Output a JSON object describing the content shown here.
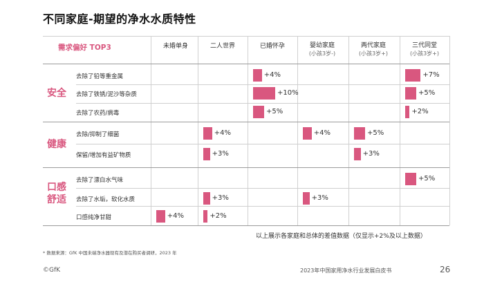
{
  "title": "不同家庭-期望的净水水质特性",
  "table": {
    "corner_label": "需求偏好 TOP3",
    "columns": [
      {
        "label": "未婚单身",
        "sub": ""
      },
      {
        "label": "二人世界",
        "sub": ""
      },
      {
        "label": "已婚怀孕",
        "sub": ""
      },
      {
        "label": "婴幼家庭",
        "sub": "(小孩3岁-)"
      },
      {
        "label": "两代家庭",
        "sub": "(小孩3岁+)"
      },
      {
        "label": "三代同堂",
        "sub": "(小孩3岁+)"
      }
    ],
    "categories": [
      {
        "label": "安全",
        "rows": [
          {
            "label": "去除了铅等重金属",
            "cells": [
              null,
              null,
              {
                "value": 4,
                "text": "+4%"
              },
              null,
              null,
              {
                "value": 7,
                "text": "+7%"
              }
            ]
          },
          {
            "label": "去除了铁锈/泥沙等杂质",
            "cells": [
              null,
              null,
              {
                "value": 10,
                "text": "+10%"
              },
              null,
              null,
              {
                "value": 5,
                "text": "+5%"
              }
            ]
          },
          {
            "label": "去除了农药/病毒",
            "cells": [
              null,
              null,
              {
                "value": 5,
                "text": "+5%"
              },
              null,
              null,
              {
                "value": 2,
                "text": "+2%"
              }
            ]
          }
        ]
      },
      {
        "label": "健康",
        "rows": [
          {
            "label": "去除/抑制了细菌",
            "cells": [
              null,
              {
                "value": 4,
                "text": "+4%"
              },
              null,
              {
                "value": 4,
                "text": "+4%"
              },
              {
                "value": 5,
                "text": "+5%"
              },
              null
            ]
          },
          {
            "label": "保留/增加有益矿物质",
            "cells": [
              null,
              {
                "value": 3,
                "text": "+3%"
              },
              null,
              null,
              {
                "value": 3,
                "text": "+3%"
              },
              null
            ]
          }
        ]
      },
      {
        "label": "口感\n舒适",
        "rows": [
          {
            "label": "去除了漂白水气味",
            "cells": [
              null,
              null,
              null,
              null,
              null,
              {
                "value": 5,
                "text": "+5%"
              }
            ]
          },
          {
            "label": "去除了水垢，软化水质",
            "cells": [
              null,
              {
                "value": 3,
                "text": "+3%"
              },
              null,
              {
                "value": 3,
                "text": "+3%"
              },
              null,
              null
            ]
          },
          {
            "label": "口感纯净甘甜",
            "cells": [
              {
                "value": 4,
                "text": "+4%"
              },
              {
                "value": 2,
                "text": "+2%"
              },
              null,
              null,
              null,
              null
            ]
          }
        ]
      }
    ]
  },
  "note": "以上展示各家庭和总体的差值数据（仅显示+2%及以上数据）",
  "source": "*  数据来源：GfK 中国未端净水器现有及潜在购买者调研，2023 年",
  "brand": "©GfK",
  "footer_title": "2023年中国家用净水行业发展白皮书",
  "page_number": "26",
  "colors": {
    "accent": "#d9577f"
  }
}
